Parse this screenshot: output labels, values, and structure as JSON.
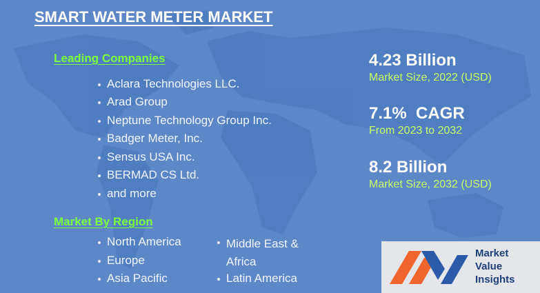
{
  "header": {
    "title": "SMART WATER METER MARKET"
  },
  "companies": {
    "heading": "Leading Companies",
    "items": [
      "Aclara Technologies LLC.",
      "Arad Group",
      "Neptune Technology Group Inc.",
      "Badger Meter, Inc.",
      "Sensus USA Inc.",
      "BERMAD CS Ltd.",
      "and more"
    ]
  },
  "regions": {
    "heading": "Market By Region",
    "items": [
      "North America",
      "Europe",
      "Asia Pacific",
      "Middle East & Africa",
      "Latin America"
    ]
  },
  "stats": [
    {
      "value": "4.23 Billion",
      "label": "Market Size, 2022 (USD)"
    },
    {
      "value": "7.1%  CAGR",
      "label": "From 2023 to 2032"
    },
    {
      "value": "8.2 Billion",
      "label": "Market Size, 2032 (USD)"
    }
  ],
  "logo": {
    "lines": [
      "Market",
      "Value",
      "Insights"
    ]
  }
}
